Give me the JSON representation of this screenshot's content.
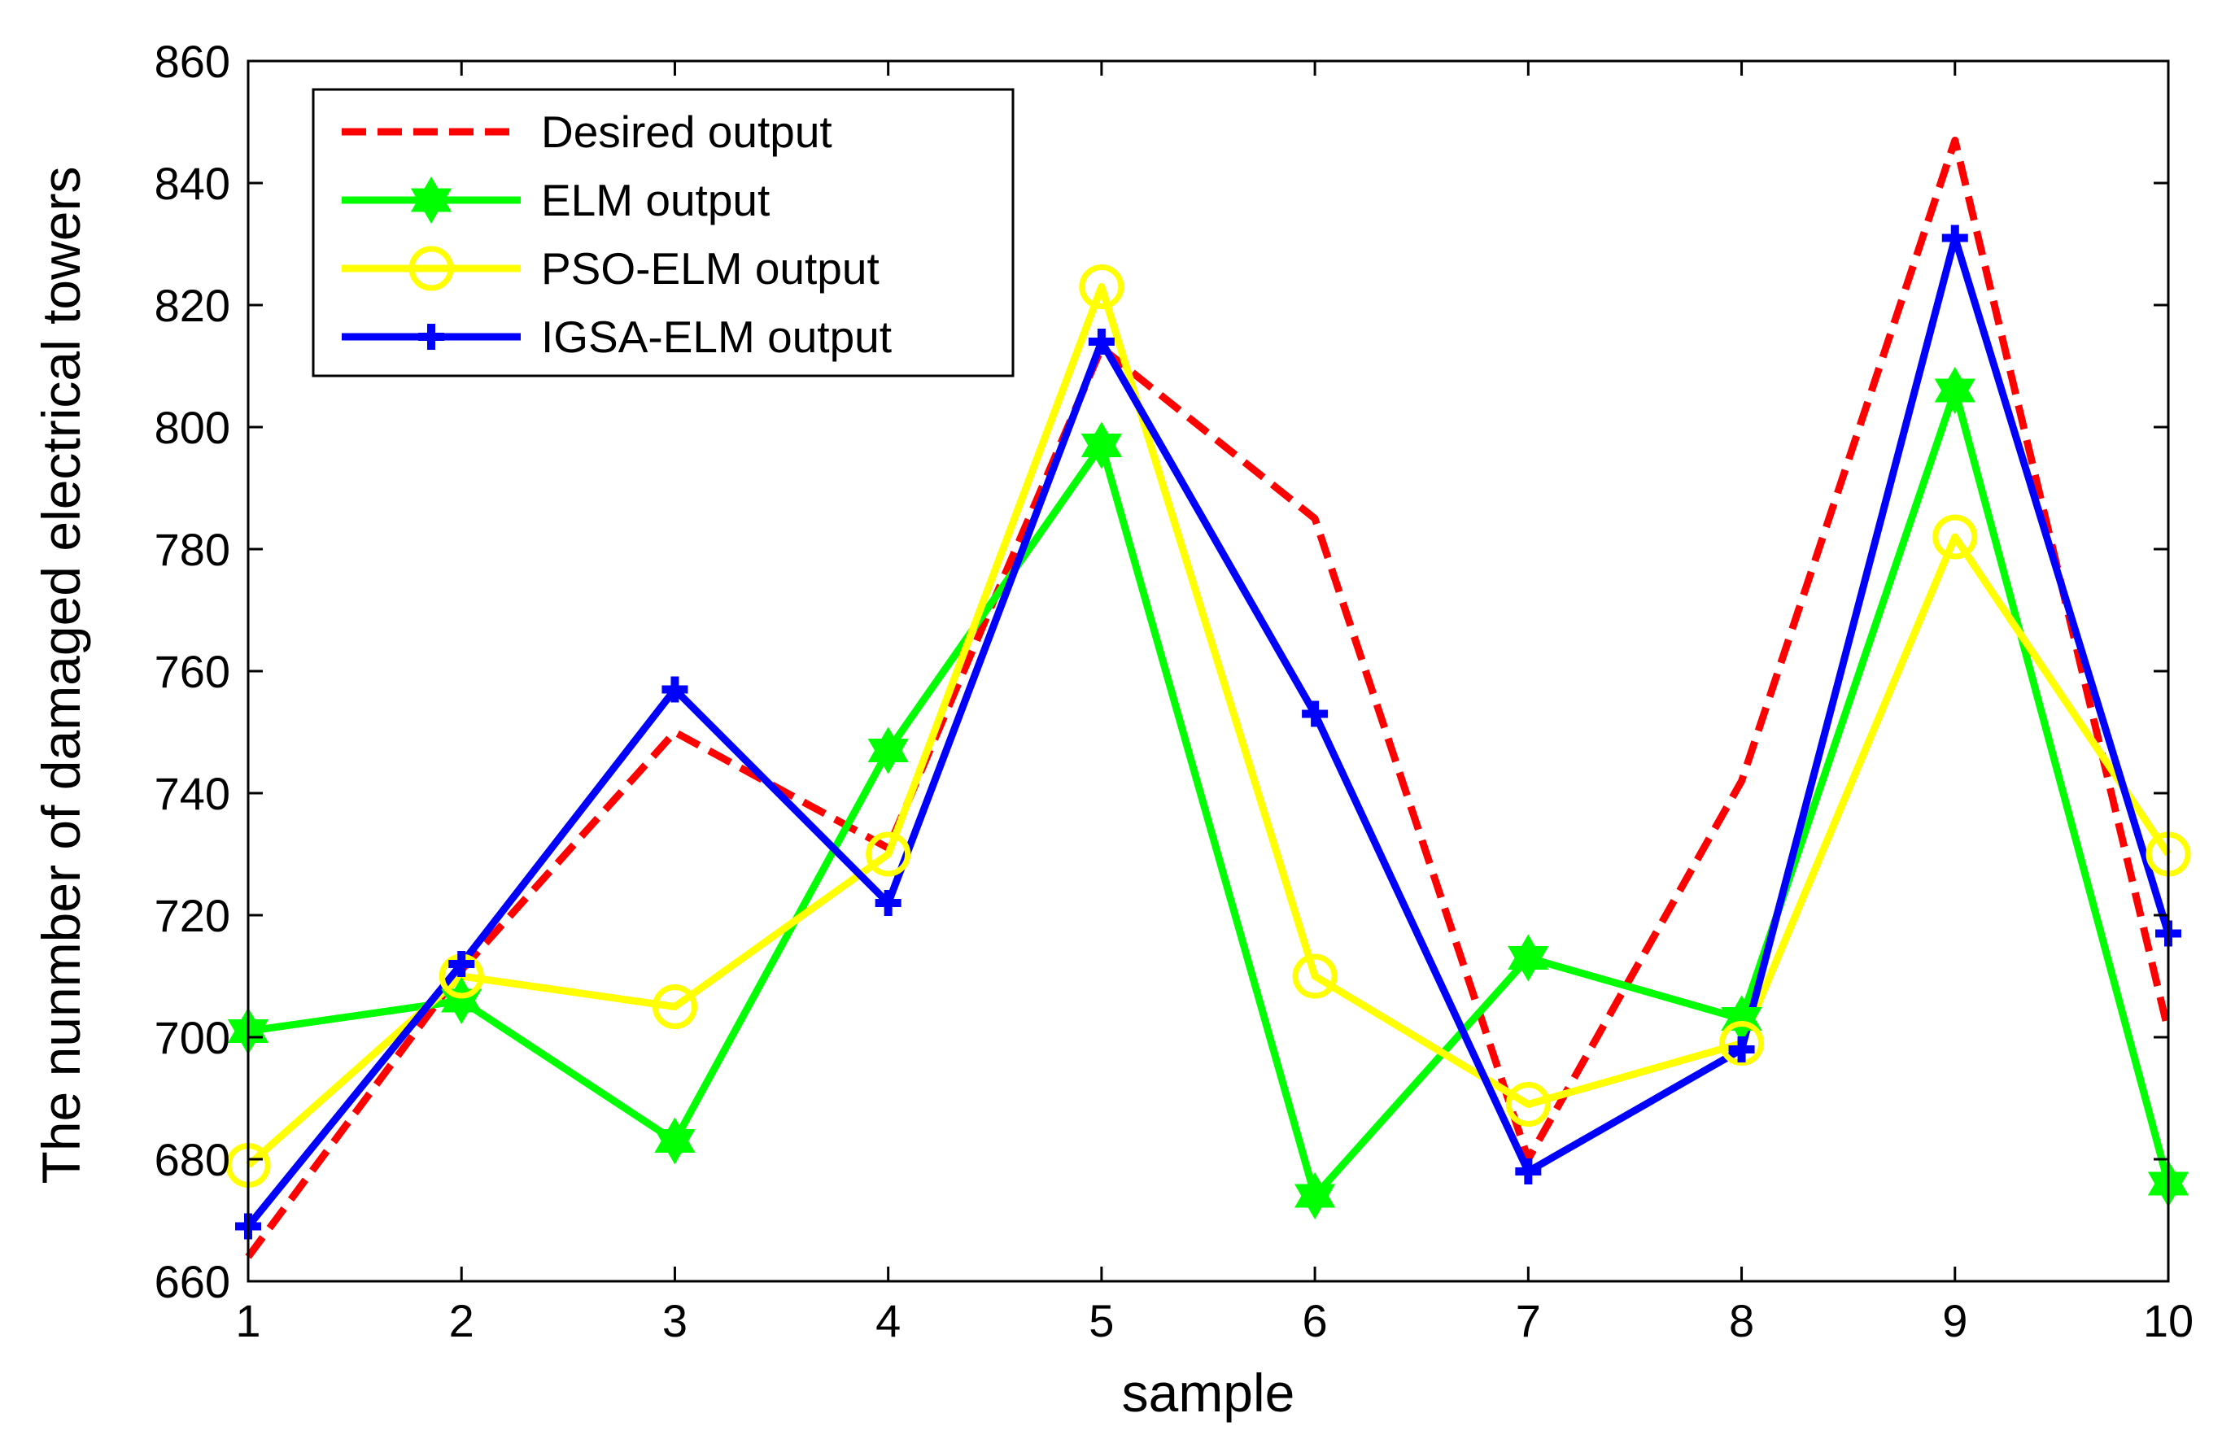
{
  "chart_data": {
    "type": "line",
    "title": "",
    "xlabel": "sample",
    "ylabel": "The nunmber of damaged electrical towers",
    "xlim": [
      1,
      10
    ],
    "ylim": [
      660,
      860
    ],
    "xticks": [
      1,
      2,
      3,
      4,
      5,
      6,
      7,
      8,
      9,
      10
    ],
    "yticks": [
      660,
      680,
      700,
      720,
      740,
      760,
      780,
      800,
      820,
      840,
      860
    ],
    "grid": false,
    "legend_position": "top-left",
    "x": [
      1,
      2,
      3,
      4,
      5,
      6,
      7,
      8,
      9,
      10
    ],
    "series": [
      {
        "name": "Desired output",
        "color": "#ff0000",
        "line_style": "dashed",
        "marker": "none",
        "values": [
          664,
          711,
          750,
          731,
          813,
          785,
          680,
          742,
          847,
          701
        ]
      },
      {
        "name": "ELM output",
        "color": "#00ff00",
        "line_style": "solid",
        "marker": "hexagram",
        "values": [
          701,
          706,
          683,
          747,
          797,
          674,
          713,
          703,
          806,
          676
        ]
      },
      {
        "name": "PSO-ELM output",
        "color": "#ffff00",
        "line_style": "solid",
        "marker": "circle",
        "values": [
          679,
          710,
          705,
          730,
          823,
          710,
          689,
          699,
          782,
          730
        ]
      },
      {
        "name": "IGSA-ELM output",
        "color": "#0000ff",
        "line_style": "solid",
        "marker": "cross",
        "values": [
          669,
          712,
          757,
          722,
          814,
          753,
          678,
          698,
          831,
          717
        ]
      }
    ]
  }
}
